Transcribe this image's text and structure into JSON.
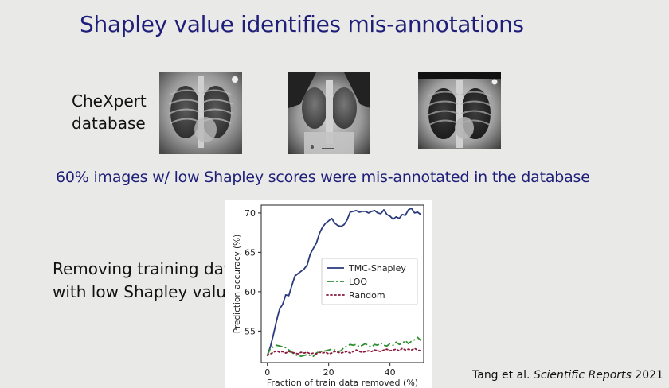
{
  "slide": {
    "title": "Shapley value identifies mis-annotations",
    "db_label_line1": "CheXpert",
    "db_label_line2": "database",
    "subtitle": "60% images w/ low Shapley scores were mis-annotated in the database",
    "side_label_line1": "Removing training data",
    "side_label_line2": "with low Shapley values",
    "citation_authors": "Tang et al.",
    "citation_journal": "Scientific Reports",
    "citation_year": "2021"
  },
  "chart_data": {
    "type": "line",
    "xlabel": "Fraction of train data removed (%)",
    "ylabel": "Prediction accuracy (%)",
    "xlim": [
      -2,
      51
    ],
    "ylim": [
      51,
      71
    ],
    "xticks": [
      0,
      20,
      40
    ],
    "yticks": [
      55,
      60,
      65,
      70
    ],
    "grid": false,
    "legend_position": "center-right",
    "series": [
      {
        "name": "TMC-Shapley",
        "color": "#2a3a7c",
        "style": "solid",
        "x": [
          0,
          1,
          2,
          3,
          4,
          5,
          6,
          7,
          8,
          9,
          10,
          11,
          12,
          13,
          14,
          15,
          16,
          17,
          18,
          19,
          20,
          21,
          22,
          23,
          24,
          25,
          26,
          27,
          28,
          29,
          30,
          31,
          32,
          33,
          34,
          35,
          36,
          37,
          38,
          39,
          40,
          41,
          42,
          43,
          44,
          45,
          46,
          47,
          48,
          49,
          50
        ],
        "values": [
          51.9,
          53.0,
          54.6,
          56.3,
          57.8,
          58.4,
          59.6,
          59.5,
          60.8,
          62.0,
          62.3,
          62.6,
          62.9,
          63.4,
          64.8,
          65.5,
          66.2,
          67.4,
          68.2,
          68.7,
          69.0,
          69.3,
          68.7,
          68.4,
          68.3,
          68.5,
          69.1,
          70.1,
          70.2,
          70.3,
          70.1,
          70.2,
          70.2,
          70.0,
          70.2,
          70.3,
          70.0,
          69.9,
          70.4,
          69.8,
          69.6,
          69.2,
          69.5,
          69.3,
          69.8,
          69.7,
          70.4,
          70.6,
          70.0,
          70.1,
          69.8
        ]
      },
      {
        "name": "LOO",
        "color": "#2f8f2f",
        "style": "dashdot",
        "x": [
          0,
          1,
          2,
          3,
          4,
          5,
          6,
          7,
          8,
          9,
          10,
          11,
          12,
          13,
          14,
          15,
          16,
          17,
          18,
          19,
          20,
          21,
          22,
          23,
          24,
          25,
          26,
          27,
          28,
          29,
          30,
          31,
          32,
          33,
          34,
          35,
          36,
          37,
          38,
          39,
          40,
          41,
          42,
          43,
          44,
          45,
          46,
          47,
          48,
          49,
          50
        ],
        "values": [
          51.9,
          52.8,
          53.0,
          53.2,
          53.1,
          53.0,
          52.9,
          52.6,
          52.3,
          52.0,
          51.9,
          51.8,
          51.9,
          52.0,
          51.9,
          51.8,
          52.2,
          52.4,
          52.4,
          52.5,
          52.6,
          52.7,
          52.6,
          52.4,
          52.5,
          52.9,
          53.1,
          53.3,
          53.2,
          53.3,
          53.0,
          53.2,
          53.4,
          53.1,
          53.0,
          53.3,
          53.2,
          53.5,
          53.2,
          53.1,
          53.4,
          53.2,
          53.6,
          53.3,
          53.4,
          53.8,
          53.4,
          53.7,
          53.9,
          54.2,
          53.8
        ]
      },
      {
        "name": "Random",
        "color": "#8a1a3a",
        "style": "dotted",
        "x": [
          0,
          1,
          2,
          3,
          4,
          5,
          6,
          7,
          8,
          9,
          10,
          11,
          12,
          13,
          14,
          15,
          16,
          17,
          18,
          19,
          20,
          21,
          22,
          23,
          24,
          25,
          26,
          27,
          28,
          29,
          30,
          31,
          32,
          33,
          34,
          35,
          36,
          37,
          38,
          39,
          40,
          41,
          42,
          43,
          44,
          45,
          46,
          47,
          48,
          49,
          50
        ],
        "values": [
          51.9,
          52.1,
          52.3,
          52.5,
          52.3,
          52.4,
          52.2,
          52.4,
          52.3,
          52.2,
          52.1,
          52.3,
          52.2,
          52.3,
          52.1,
          52.2,
          52.1,
          52.3,
          52.2,
          52.3,
          52.1,
          52.2,
          52.4,
          52.3,
          52.2,
          52.3,
          52.4,
          52.2,
          52.4,
          52.6,
          52.4,
          52.3,
          52.4,
          52.5,
          52.4,
          52.6,
          52.5,
          52.4,
          52.6,
          52.7,
          52.5,
          52.6,
          52.7,
          52.5,
          52.8,
          52.6,
          52.7,
          52.6,
          52.8,
          52.6,
          52.5
        ]
      }
    ]
  }
}
